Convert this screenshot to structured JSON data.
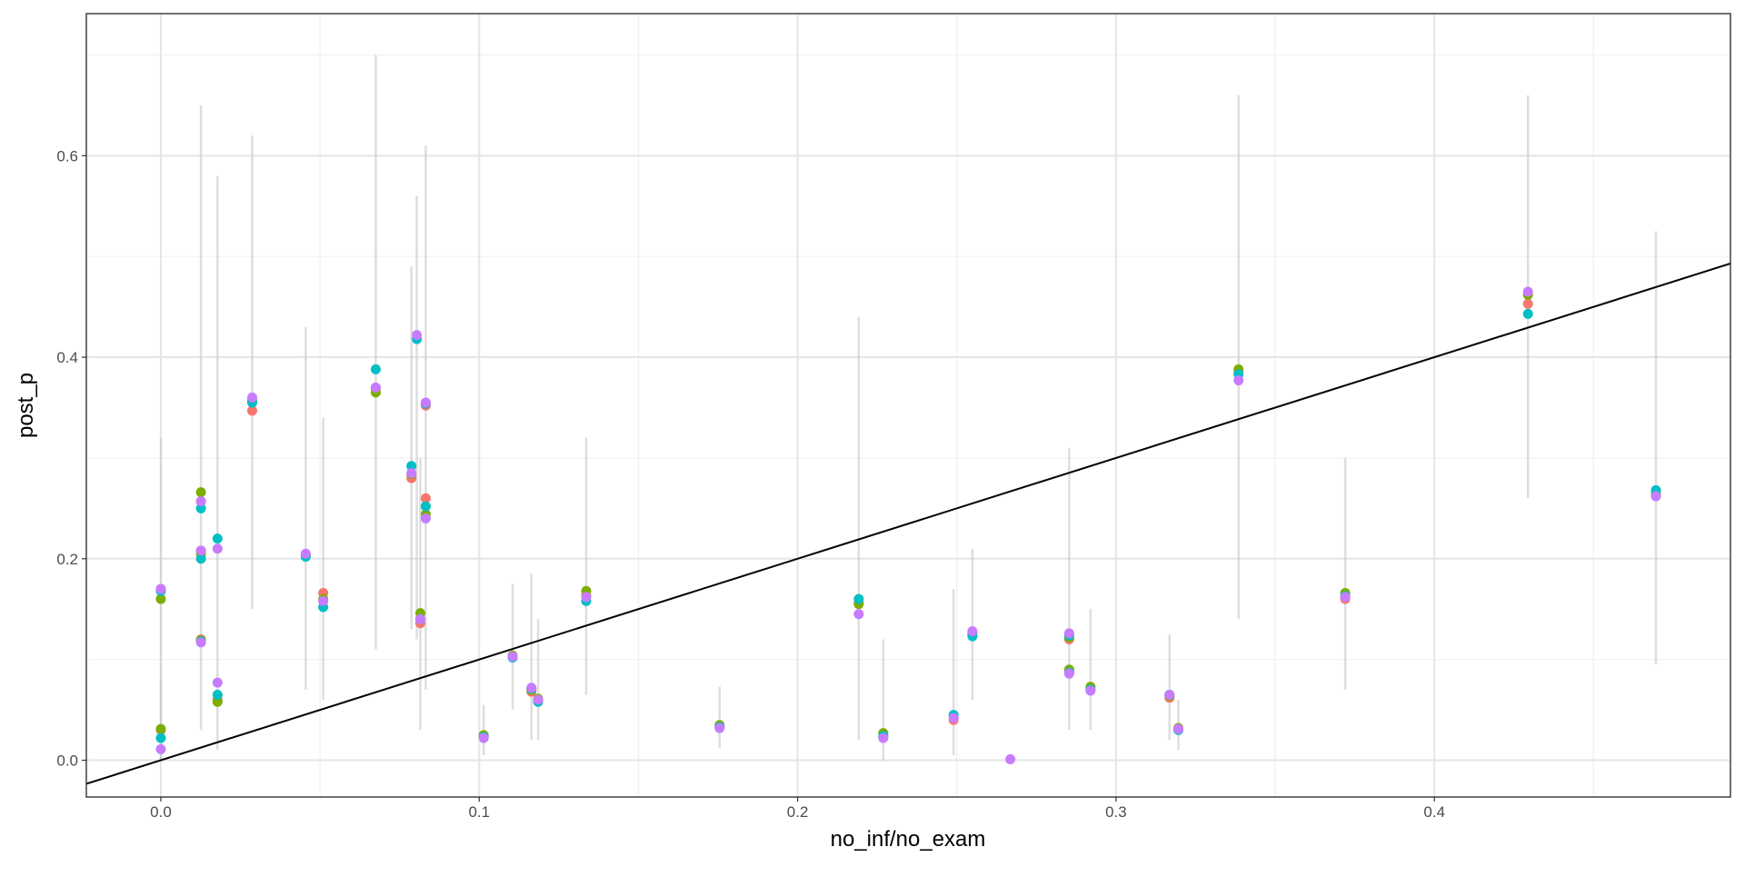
{
  "chart_data": {
    "type": "scatter",
    "x_label": "no_inf/no_exam",
    "y_label": "post_p",
    "xlim": [
      -0.0234,
      0.493
    ],
    "ylim": [
      -0.0365,
      0.741
    ],
    "xticks": [
      {
        "value": 0,
        "label": "0.0"
      },
      0.1,
      0.2,
      0.3,
      0.4
    ],
    "yticks": [
      {
        "value": 0,
        "label": "0.0"
      },
      0.2,
      0.4,
      0.6
    ],
    "minor_xticks": [
      0.05,
      0.15,
      0.25,
      0.35,
      0.45
    ],
    "minor_yticks": [
      0.1,
      0.3,
      0.5,
      0.7
    ],
    "grid": true,
    "abline": {
      "slope": 1,
      "intercept": 0,
      "color": "#000000"
    },
    "intervals": {
      "color": "#c8c8c8",
      "x": [
        0,
        0,
        0.0126,
        0.0178,
        0.0287,
        0.0455,
        0.051,
        0.0675,
        0.0787,
        0.0804,
        0.0815,
        0.0832,
        0.1014,
        0.1105,
        0.1164,
        0.1185,
        0.1336,
        0.1755,
        0.2192,
        0.2269,
        0.249,
        0.2549,
        0.2853,
        0.292,
        0.3168,
        0.3196,
        0.3385,
        0.372,
        0.4294,
        0.4696
      ],
      "lo": [
        0.0,
        0.0,
        0.03,
        0.01,
        0.15,
        0.07,
        0.06,
        0.11,
        0.13,
        0.12,
        0.03,
        0.07,
        0.005,
        0.05,
        0.02,
        0.02,
        0.065,
        0.012,
        0.02,
        0.0,
        0.005,
        0.06,
        0.03,
        0.03,
        0.02,
        0.01,
        0.14,
        0.07,
        0.26,
        0.095
      ],
      "hi": [
        0.32,
        0.08,
        0.65,
        0.58,
        0.62,
        0.43,
        0.34,
        0.7,
        0.49,
        0.56,
        0.3,
        0.61,
        0.055,
        0.175,
        0.185,
        0.14,
        0.32,
        0.073,
        0.44,
        0.12,
        0.17,
        0.21,
        0.31,
        0.15,
        0.125,
        0.06,
        0.66,
        0.3,
        0.66,
        0.525
      ]
    },
    "series": [
      {
        "color": "#F8766D",
        "x": [
          0,
          0,
          0.0126,
          0.0126,
          0.0126,
          0.0178,
          0.0287,
          0.0455,
          0.051,
          0.0675,
          0.0787,
          0.0815,
          0.0832,
          0.0832,
          0.1014,
          0.1105,
          0.1164,
          0.1185,
          0.1336,
          0.1755,
          0.2192,
          0.2269,
          0.249,
          0.2549,
          0.2853,
          0.2853,
          0.292,
          0.3168,
          0.3196,
          0.3385,
          0.372,
          0.4294,
          0.4696
        ],
        "values": [
          0.17,
          0.03,
          0.257,
          0.208,
          0.12,
          0.06,
          0.347,
          0.203,
          0.166,
          0.368,
          0.28,
          0.136,
          0.352,
          0.26,
          0.024,
          0.103,
          0.068,
          0.06,
          0.164,
          0.033,
          0.156,
          0.024,
          0.04,
          0.125,
          0.12,
          0.088,
          0.07,
          0.062,
          0.031,
          0.385,
          0.16,
          0.453,
          0.264
        ]
      },
      {
        "color": "#7CAE00",
        "x": [
          0,
          0,
          0.0126,
          0.0126,
          0.0126,
          0.0178,
          0.0287,
          0.0455,
          0.051,
          0.0675,
          0.0787,
          0.0815,
          0.0832,
          0.0832,
          0.1014,
          0.1105,
          0.1164,
          0.1185,
          0.1336,
          0.1755,
          0.2192,
          0.2269,
          0.249,
          0.2549,
          0.2853,
          0.2853,
          0.292,
          0.3168,
          0.3196,
          0.3385,
          0.372,
          0.4294,
          0.4696
        ],
        "values": [
          0.16,
          0.031,
          0.266,
          0.205,
          0.119,
          0.058,
          0.357,
          0.204,
          0.16,
          0.365,
          0.284,
          0.146,
          0.354,
          0.244,
          0.025,
          0.104,
          0.07,
          0.061,
          0.168,
          0.035,
          0.155,
          0.027,
          0.043,
          0.126,
          0.122,
          0.09,
          0.073,
          0.064,
          0.032,
          0.388,
          0.166,
          0.462,
          0.265
        ]
      },
      {
        "color": "#00BFC4",
        "x": [
          0,
          0,
          0.0126,
          0.0126,
          0.0126,
          0.0178,
          0.0178,
          0.0287,
          0.0455,
          0.051,
          0.0675,
          0.0787,
          0.0804,
          0.0815,
          0.0832,
          0.0832,
          0.1014,
          0.1105,
          0.1164,
          0.1185,
          0.1336,
          0.1755,
          0.2192,
          0.2269,
          0.249,
          0.2549,
          0.2853,
          0.2853,
          0.292,
          0.3168,
          0.3196,
          0.3385,
          0.372,
          0.4294,
          0.4696
        ],
        "values": [
          0.168,
          0.022,
          0.25,
          0.2,
          0.118,
          0.22,
          0.065,
          0.355,
          0.202,
          0.152,
          0.388,
          0.292,
          0.418,
          0.14,
          0.354,
          0.252,
          0.023,
          0.102,
          0.071,
          0.058,
          0.158,
          0.033,
          0.16,
          0.024,
          0.045,
          0.123,
          0.124,
          0.087,
          0.07,
          0.065,
          0.03,
          0.383,
          0.163,
          0.443,
          0.268
        ]
      },
      {
        "color": "#C77CFF",
        "x": [
          0,
          0,
          0.0126,
          0.0126,
          0.0126,
          0.0178,
          0.0178,
          0.0287,
          0.0455,
          0.051,
          0.0675,
          0.0787,
          0.0804,
          0.0815,
          0.0832,
          0.0832,
          0.1014,
          0.1105,
          0.1164,
          0.1185,
          0.1336,
          0.1755,
          0.2192,
          0.2269,
          0.249,
          0.2549,
          0.2668,
          0.2853,
          0.2853,
          0.292,
          0.3168,
          0.3196,
          0.3385,
          0.372,
          0.4294,
          0.4696
        ],
        "values": [
          0.17,
          0.011,
          0.257,
          0.208,
          0.117,
          0.21,
          0.077,
          0.36,
          0.205,
          0.158,
          0.37,
          0.285,
          0.422,
          0.14,
          0.355,
          0.24,
          0.022,
          0.103,
          0.072,
          0.06,
          0.162,
          0.032,
          0.145,
          0.022,
          0.042,
          0.128,
          0.001,
          0.126,
          0.086,
          0.069,
          0.065,
          0.031,
          0.377,
          0.162,
          0.465,
          0.262
        ]
      }
    ]
  }
}
